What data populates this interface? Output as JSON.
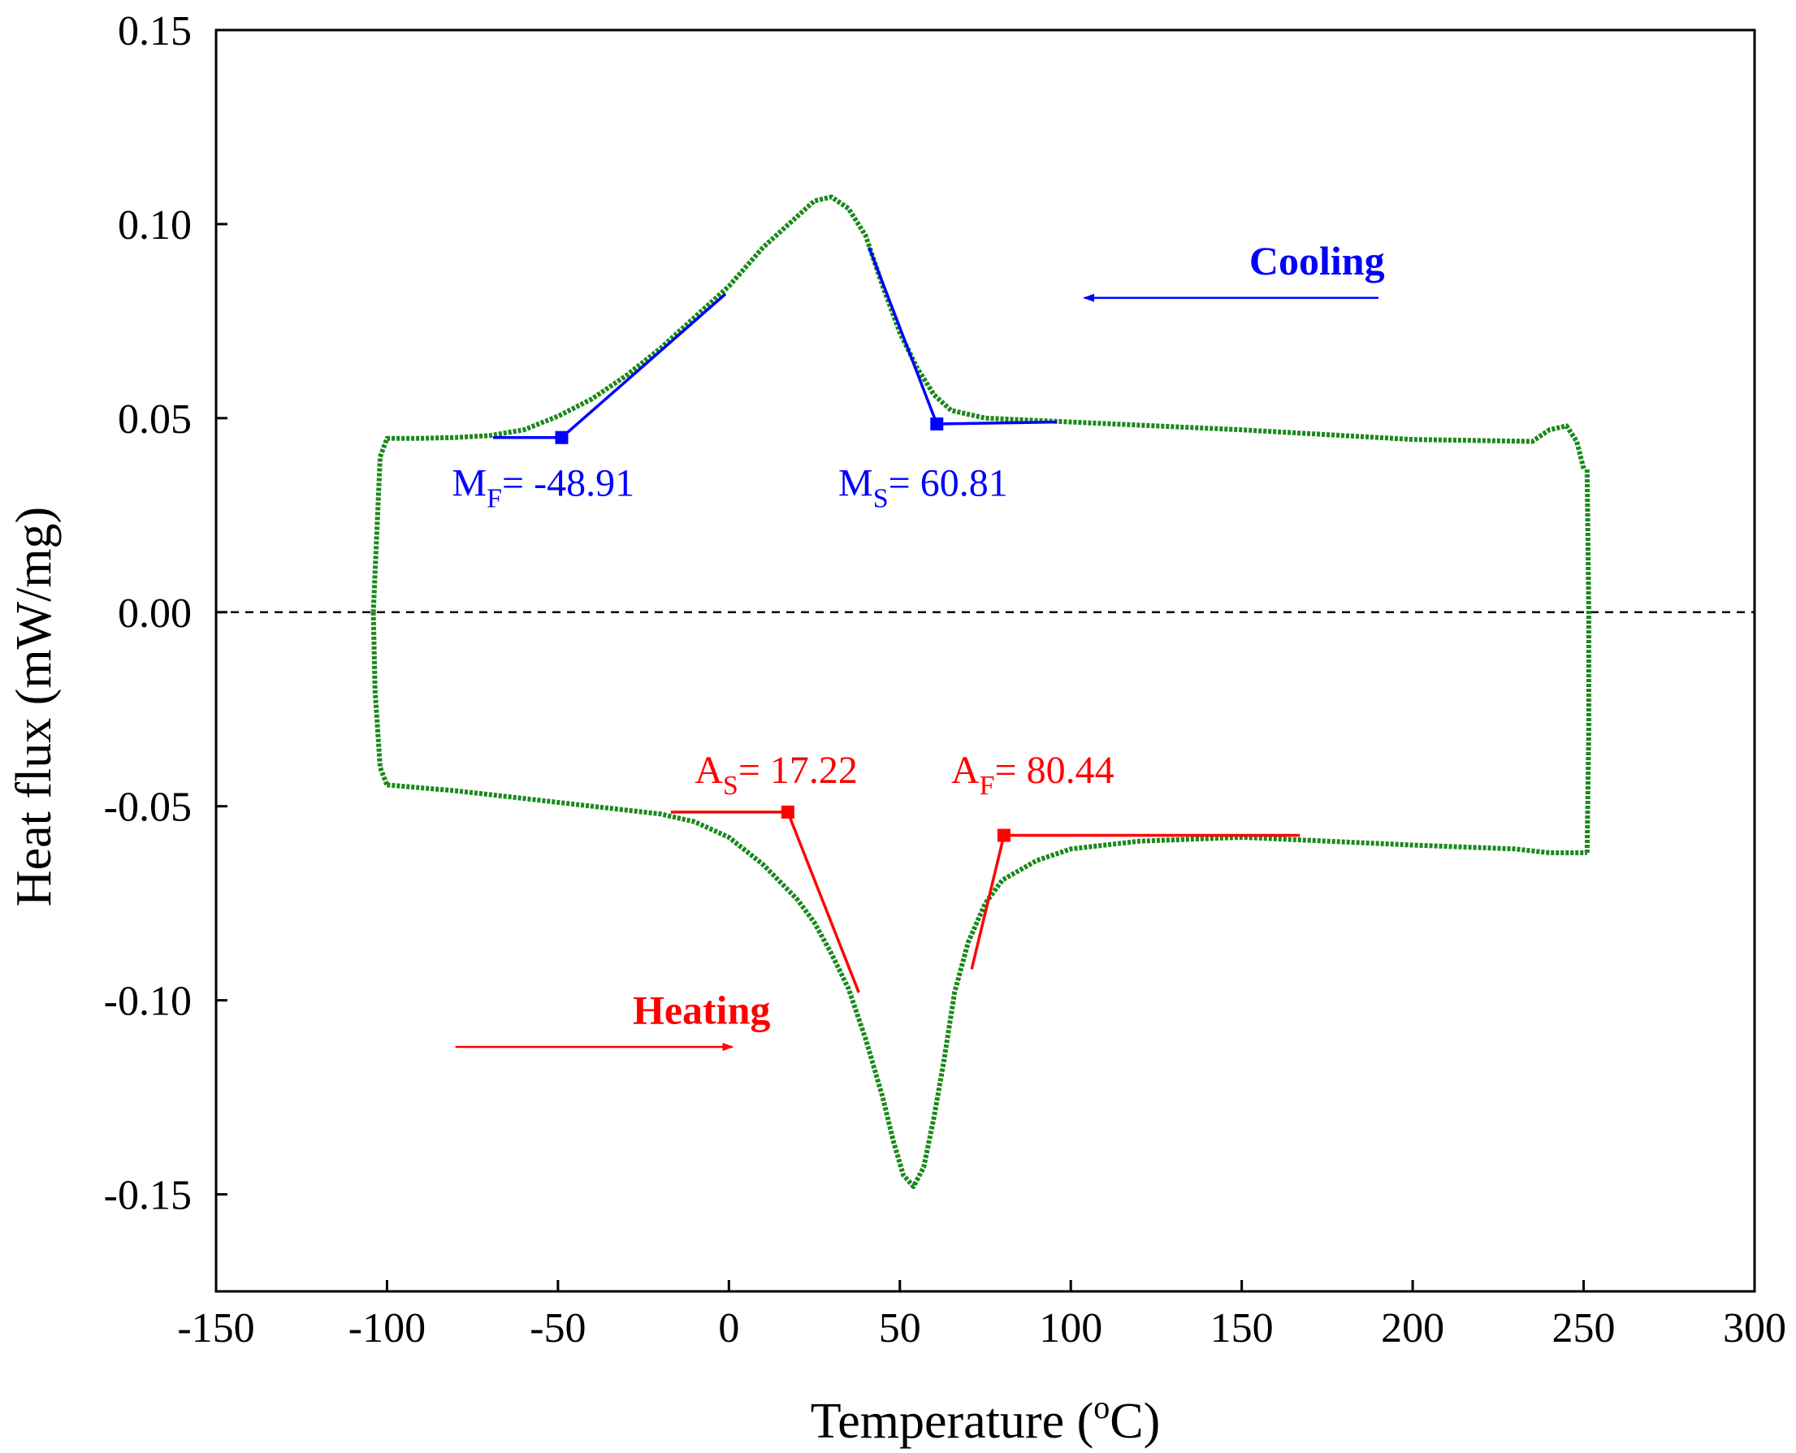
{
  "chart_data": {
    "type": "line",
    "xlabel_prefix": "Temperature (",
    "xlabel_unit_sup": "o",
    "xlabel_suffix": "C)",
    "ylabel": "Heat flux (mW/mg)",
    "xlim": [
      -150,
      300
    ],
    "ylim": [
      -0.175,
      0.15
    ],
    "xticks": [
      -150,
      -100,
      -50,
      0,
      50,
      100,
      150,
      200,
      250,
      300
    ],
    "xtick_labels": [
      "-150",
      "-100",
      "-50",
      "0",
      "50",
      "100",
      "150",
      "200",
      "250",
      "300"
    ],
    "yticks": [
      0.15,
      0.1,
      0.05,
      0.0,
      -0.05,
      -0.1,
      -0.15
    ],
    "ytick_labels": [
      "0.15",
      "0.10",
      "0.05",
      "0.00",
      "-0.05",
      "-0.10",
      "-0.15"
    ],
    "grid": false,
    "reference_line_y": 0.0,
    "series": [
      {
        "role": "cooling",
        "color": "#1a8a1a",
        "x": [
          250,
          248,
          245,
          240,
          235,
          200,
          150,
          100,
          75,
          65,
          60,
          55,
          50,
          45,
          40,
          35,
          30,
          25,
          20,
          10,
          0,
          -10,
          -20,
          -30,
          -40,
          -50,
          -60,
          -70,
          -80,
          -90,
          -100,
          -102,
          -103,
          -104
        ],
        "y": [
          0.037,
          0.044,
          0.048,
          0.047,
          0.044,
          0.0445,
          0.047,
          0.049,
          0.05,
          0.052,
          0.056,
          0.063,
          0.072,
          0.084,
          0.097,
          0.104,
          0.107,
          0.106,
          0.102,
          0.094,
          0.084,
          0.076,
          0.068,
          0.061,
          0.055,
          0.0505,
          0.047,
          0.0455,
          0.045,
          0.0448,
          0.0448,
          0.04,
          0.02,
          0.0
        ]
      },
      {
        "role": "cooling-to-heating",
        "color": "#1a8a1a",
        "x": [
          -104,
          -103.5,
          -102,
          -100
        ],
        "y": [
          0.0,
          -0.02,
          -0.04,
          -0.0445
        ]
      },
      {
        "role": "heating",
        "color": "#1a8a1a",
        "x": [
          -100,
          -80,
          -60,
          -40,
          -20,
          -10,
          0,
          10,
          20,
          25,
          30,
          35,
          40,
          45,
          48,
          51,
          54,
          57,
          60,
          63,
          66,
          70,
          75,
          80,
          90,
          100,
          120,
          150,
          200,
          230,
          240,
          245,
          251
        ],
        "y": [
          -0.0445,
          -0.046,
          -0.048,
          -0.05,
          -0.052,
          -0.054,
          -0.058,
          -0.065,
          -0.074,
          -0.08,
          -0.088,
          -0.097,
          -0.11,
          -0.125,
          -0.136,
          -0.145,
          -0.148,
          -0.143,
          -0.13,
          -0.115,
          -0.098,
          -0.085,
          -0.075,
          -0.069,
          -0.064,
          -0.061,
          -0.059,
          -0.058,
          -0.06,
          -0.061,
          -0.062,
          -0.062,
          -0.062
        ]
      },
      {
        "role": "heating-to-cooling",
        "color": "#1a8a1a",
        "x": [
          251,
          251.5,
          251.5,
          251
        ],
        "y": [
          -0.062,
          -0.03,
          0.0,
          0.037
        ]
      }
    ],
    "cooling_annotations": {
      "color": "#0000ff",
      "ms_tangents": [
        {
          "x": [
            41,
            60.81
          ],
          "y": [
            0.094,
            0.0485
          ]
        },
        {
          "x": [
            60.81,
            96
          ],
          "y": [
            0.0485,
            0.049
          ]
        }
      ],
      "ms_point": {
        "x": 60.81,
        "y": 0.0485
      },
      "ms_label_main": "M",
      "ms_label_sub": "S",
      "ms_label_value": "= 60.81",
      "ms_label_pos": {
        "x": 32,
        "y": 0.03
      },
      "mf_tangents": [
        {
          "x": [
            -48.91,
            -1
          ],
          "y": [
            0.045,
            0.082
          ]
        },
        {
          "x": [
            -69,
            -48.91
          ],
          "y": [
            0.045,
            0.045
          ]
        }
      ],
      "mf_point": {
        "x": -48.91,
        "y": 0.045
      },
      "mf_label_main": "M",
      "mf_label_sub": "F",
      "mf_label_value": "= -48.91",
      "mf_label_pos": {
        "x": -81,
        "y": 0.03
      }
    },
    "heating_annotations": {
      "color": "#ff0000",
      "as_tangents": [
        {
          "x": [
            17.22,
            38
          ],
          "y": [
            -0.0515,
            -0.098
          ]
        },
        {
          "x": [
            -17,
            17.22
          ],
          "y": [
            -0.0515,
            -0.0515
          ]
        }
      ],
      "as_point": {
        "x": 17.22,
        "y": -0.0515
      },
      "as_label_main": "A",
      "as_label_sub": "S",
      "as_label_value": "= 17.22",
      "as_label_pos": {
        "x": -10,
        "y": -0.044
      },
      "af_tangents": [
        {
          "x": [
            80.44,
            71
          ],
          "y": [
            -0.0575,
            -0.092
          ]
        },
        {
          "x": [
            80.44,
            167
          ],
          "y": [
            -0.0575,
            -0.0575
          ]
        }
      ],
      "af_point": {
        "x": 80.44,
        "y": -0.0575
      },
      "af_label_main": "A",
      "af_label_sub": "F",
      "af_label_value": "= 80.44",
      "af_label_pos": {
        "x": 65,
        "y": -0.044
      }
    },
    "direction_labels": {
      "cooling": {
        "text": "Cooling",
        "color": "#0000ff",
        "text_pos": {
          "x": 172,
          "y": 0.087
        },
        "arrow_from": {
          "x": 190,
          "y": 0.081
        },
        "arrow_to": {
          "x": 104,
          "y": 0.081
        }
      },
      "heating": {
        "text": "Heating",
        "color": "#ff0000",
        "text_pos": {
          "x": -8,
          "y": -0.106
        },
        "arrow_from": {
          "x": -80,
          "y": -0.112
        },
        "arrow_to": {
          "x": 1,
          "y": -0.112
        }
      }
    }
  }
}
